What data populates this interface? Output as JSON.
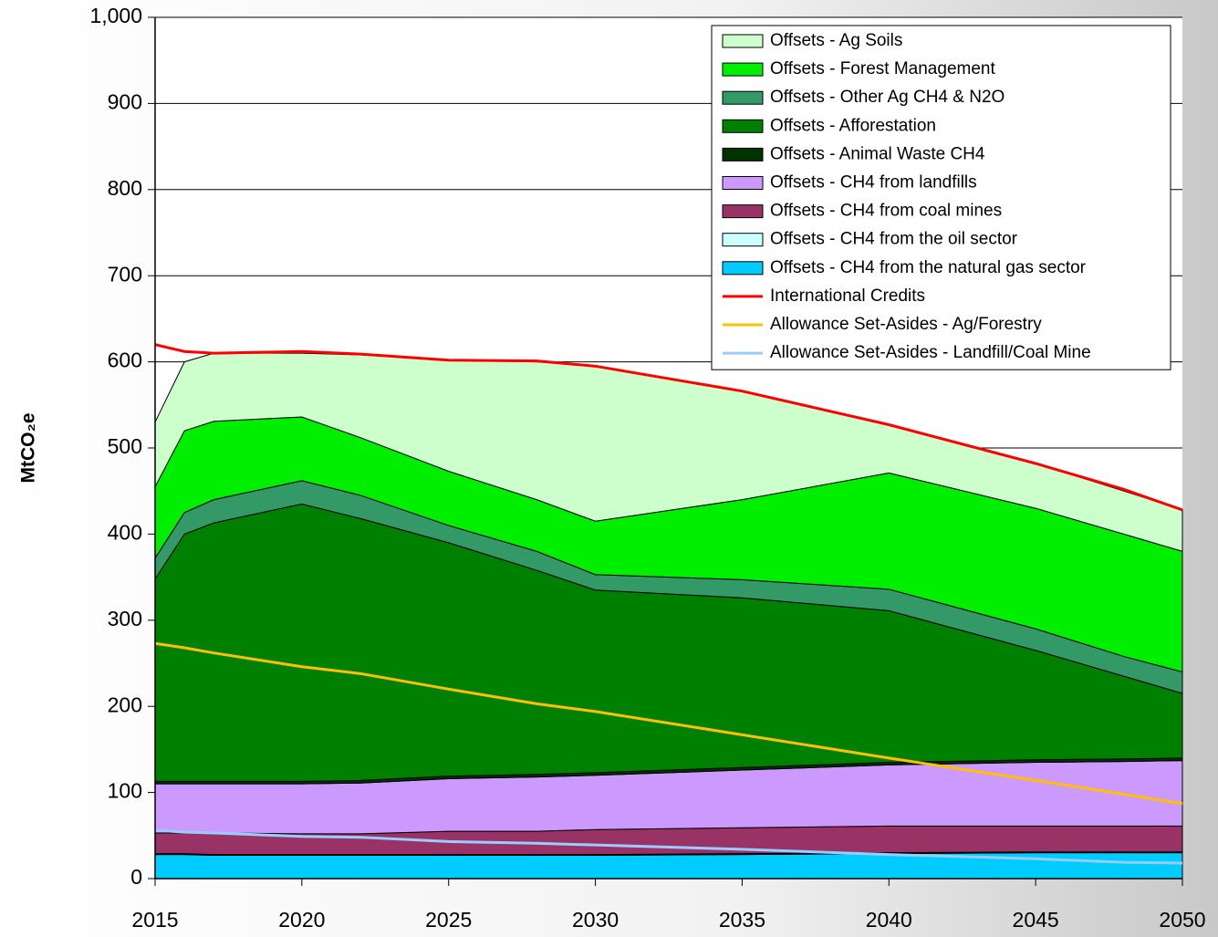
{
  "chart_data": {
    "type": "area",
    "y_label": "MtCO₂e",
    "x": [
      2015,
      2016,
      2017,
      2020,
      2022,
      2025,
      2028,
      2030,
      2035,
      2040,
      2045,
      2048,
      2050
    ],
    "xlim": [
      2015,
      2050
    ],
    "xticks": [
      2015,
      2020,
      2025,
      2030,
      2035,
      2040,
      2045,
      2050
    ],
    "ylim": [
      0,
      1000
    ],
    "yticks": [
      0,
      100,
      200,
      300,
      400,
      500,
      600,
      700,
      800,
      900,
      {
        "value": 1000,
        "label": "1,000"
      }
    ],
    "grid": true,
    "legend": "upper right",
    "series": [
      {
        "name": "Offsets - Ag Soils",
        "type": "area",
        "color": "#ccffcc",
        "values": [
          75,
          80,
          79,
          74,
          96,
          129,
          160,
          180,
          126,
          56,
          52,
          50,
          48
        ]
      },
      {
        "name": "Offsets - Forest Management",
        "type": "area",
        "color": "#00ee00",
        "values": [
          83,
          95,
          91,
          74,
          67,
          63,
          60,
          62,
          93,
          135,
          140,
          142,
          140
        ]
      },
      {
        "name": "Offsets - Other Ag CH4 & N2O",
        "type": "area",
        "color": "#339966",
        "values": [
          24,
          25,
          27,
          27,
          27,
          20,
          22,
          18,
          21,
          25,
          25,
          23,
          25
        ]
      },
      {
        "name": "Offsets - Afforestation",
        "type": "area",
        "color": "#008000",
        "values": [
          235,
          287,
          300,
          322,
          304,
          271,
          237,
          212,
          197,
          176,
          127,
          96,
          75
        ]
      },
      {
        "name": "Offsets - Animal Waste CH4",
        "type": "area",
        "color": "#003300",
        "values": [
          3,
          3,
          3,
          3,
          3,
          3,
          3,
          3,
          3,
          3,
          3,
          3,
          3
        ]
      },
      {
        "name": "Offsets - CH4 from landfills",
        "type": "area",
        "color": "#cc99ff",
        "values": [
          57,
          57,
          57,
          58,
          59,
          61,
          63,
          63,
          67,
          71,
          74,
          75,
          76
        ]
      },
      {
        "name": "Offsets - CH4 from coal mines",
        "type": "area",
        "color": "#993366",
        "values": [
          24,
          24,
          25,
          24,
          24,
          27,
          27,
          29,
          30,
          31,
          30,
          30,
          30
        ]
      },
      {
        "name": "Offsets - CH4 from the oil sector",
        "type": "area",
        "color": "#ccffff",
        "values": [
          1,
          1,
          1,
          1,
          1,
          1,
          1,
          1,
          1,
          1,
          1,
          1,
          1
        ]
      },
      {
        "name": "Offsets - CH4 from the natural gas sector",
        "type": "area",
        "color": "#00ccff",
        "values": [
          28,
          28,
          27,
          27,
          27,
          27,
          27,
          27,
          28,
          29,
          30,
          30,
          30
        ]
      },
      {
        "name": "International Credits",
        "type": "line",
        "color": "#ff0000",
        "values": [
          620,
          612,
          610,
          612,
          609,
          602,
          601,
          595,
          566,
          527,
          482,
          452,
          428
        ]
      },
      {
        "name": "Allowance Set-Asides - Ag/Forestry",
        "type": "line",
        "color": "#ffc000",
        "values": [
          273,
          268,
          262,
          246,
          238,
          220,
          203,
          194,
          167,
          140,
          114,
          98,
          87
        ]
      },
      {
        "name": "Allowance Set-Asides - Landfill/Coal Mine",
        "type": "line",
        "color": "#99ccff",
        "values": [
          56,
          54,
          53,
          49,
          48,
          43,
          41,
          39,
          34,
          28,
          23,
          19,
          18
        ]
      }
    ]
  }
}
